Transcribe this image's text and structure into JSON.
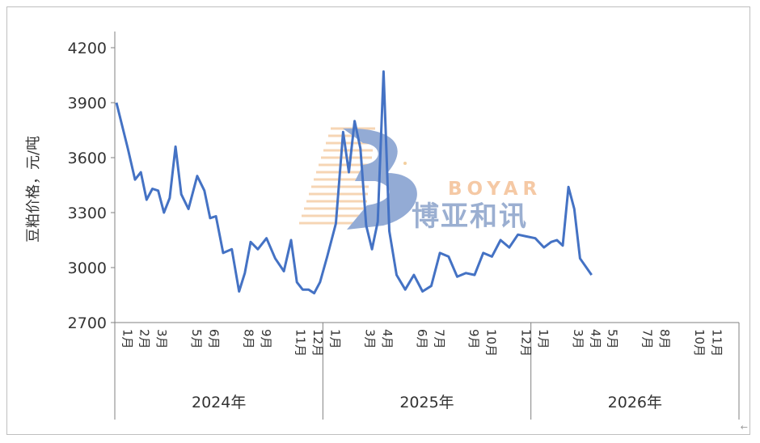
{
  "chart_data": {
    "type": "line",
    "ylabel": "豆粕价格，元/吨",
    "ylim": [
      2700,
      4200
    ],
    "yticks": [
      "4200",
      "3900",
      "3600",
      "3300",
      "3000",
      "2700"
    ],
    "line_color": "#4472c4",
    "grid": false,
    "years": [
      {
        "label": "2024年",
        "months": [
          "1月",
          "2月",
          "3月",
          "5月",
          "6月",
          "8月",
          "9月",
          "11月",
          "12月"
        ]
      },
      {
        "label": "2025年",
        "months": [
          "1月",
          "3月",
          "4月",
          "6月",
          "7月",
          "9月",
          "10月",
          "12月"
        ]
      },
      {
        "label": "2026年",
        "months": [
          "1月",
          "3月",
          "4月",
          "5月",
          "7月",
          "8月",
          "10月",
          "11月"
        ]
      }
    ],
    "series": [
      {
        "x": [
          "2024-01",
          "2024-01",
          "2024-02",
          "2024-02",
          "2024-02",
          "2024-03",
          "2024-03",
          "2024-03",
          "2024-04",
          "2024-04",
          "2024-04",
          "2024-05",
          "2024-05",
          "2024-06",
          "2024-06",
          "2024-06",
          "2024-07",
          "2024-07",
          "2024-08",
          "2024-08",
          "2024-08",
          "2024-09",
          "2024-09",
          "2024-10",
          "2024-10",
          "2024-11",
          "2024-11",
          "2024-11",
          "2024-12",
          "2024-12",
          "2024-12",
          "2025-01",
          "2025-01",
          "2025-02",
          "2025-02",
          "2025-02",
          "2025-03",
          "2025-03",
          "2025-03",
          "2025-04",
          "2025-04",
          "2025-04",
          "2025-05",
          "2025-05",
          "2025-06",
          "2025-06",
          "2025-07",
          "2025-07",
          "2025-08",
          "2025-08",
          "2025-09",
          "2025-09",
          "2025-10",
          "2025-10",
          "2025-11",
          "2025-11",
          "2025-12",
          "2025-12",
          "2026-01",
          "2026-01",
          "2026-02",
          "2026-02",
          "2026-02",
          "2026-03",
          "2026-03",
          "2026-03",
          "2026-04"
        ],
        "values": [
          3900,
          3650,
          3480,
          3520,
          3370,
          3430,
          3420,
          3300,
          3380,
          3660,
          3400,
          3320,
          3500,
          3420,
          3270,
          3280,
          3080,
          3100,
          2870,
          2970,
          3140,
          3100,
          3160,
          3050,
          2980,
          3150,
          2920,
          2880,
          2880,
          2860,
          2920,
          3060,
          3240,
          3740,
          3520,
          3800,
          3650,
          3230,
          3100,
          3250,
          4070,
          3200,
          2960,
          2880,
          2960,
          2870,
          2900,
          3080,
          3060,
          2950,
          2970,
          2960,
          3080,
          3060,
          3150,
          3110,
          3180,
          3170,
          3160,
          3110,
          3140,
          3150,
          3120,
          3440,
          3320,
          3050,
          2960
        ]
      }
    ]
  }
}
